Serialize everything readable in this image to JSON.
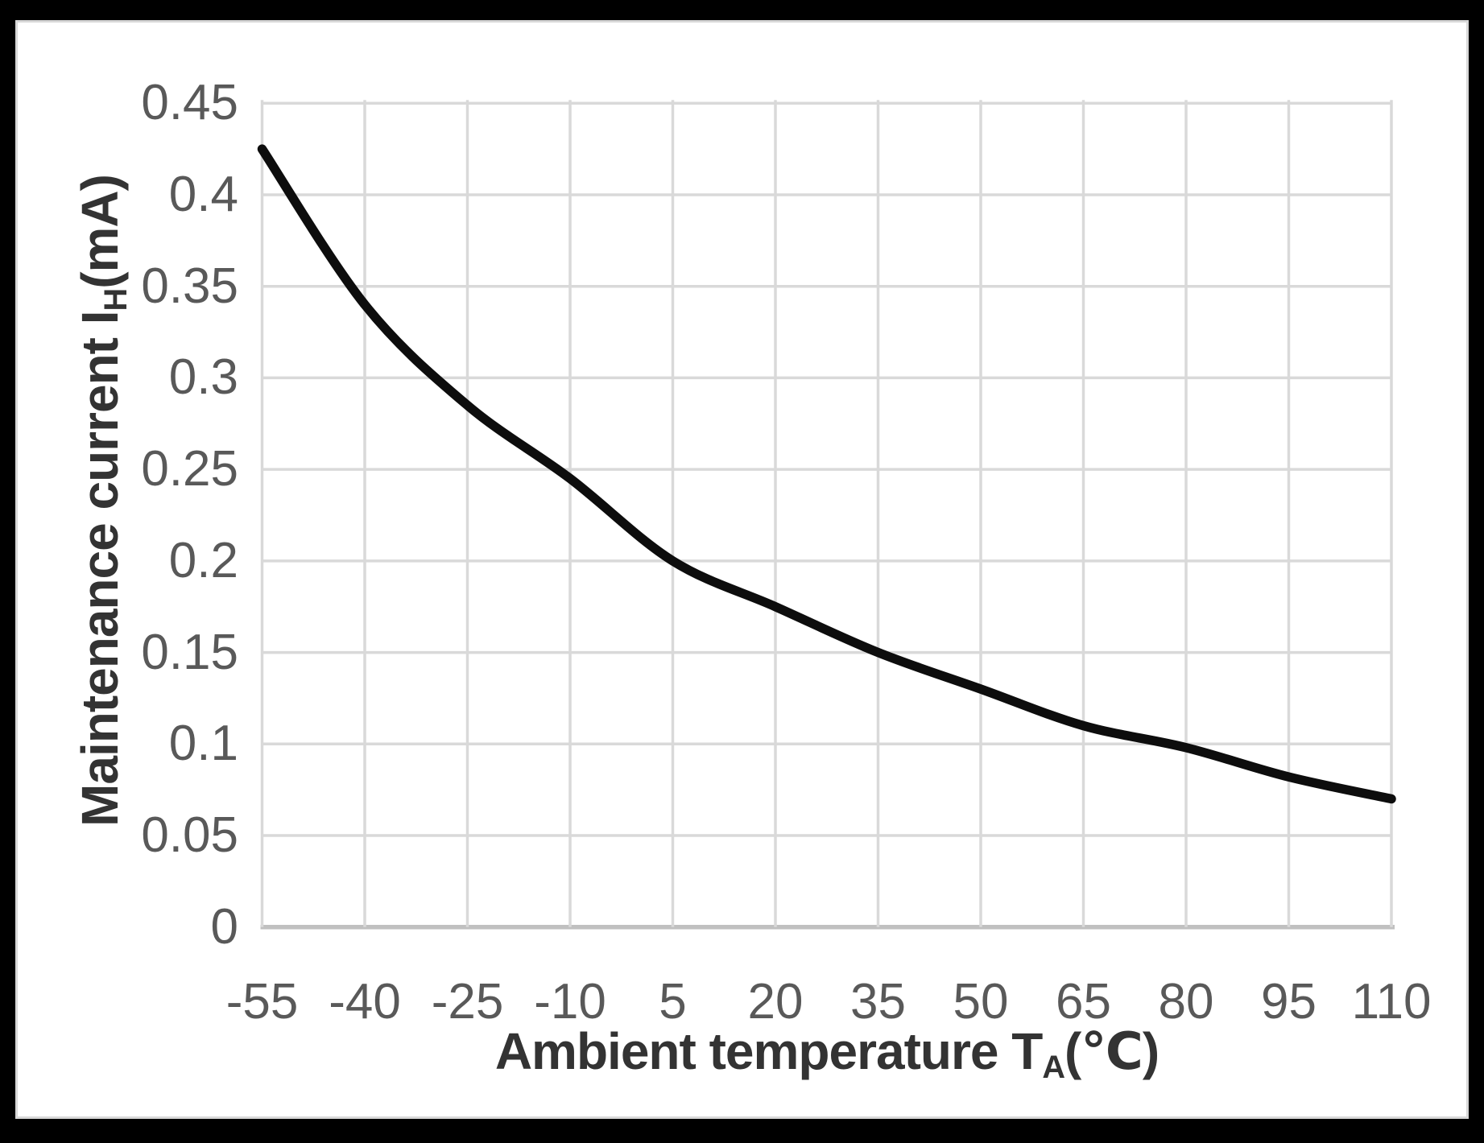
{
  "chart_data": {
    "type": "line",
    "title": "",
    "x": [
      -55,
      -40,
      -25,
      -10,
      5,
      20,
      35,
      50,
      65,
      80,
      95,
      110
    ],
    "series": [
      {
        "name": "maintenance-current",
        "values": [
          0.425,
          0.34,
          0.285,
          0.245,
          0.2,
          0.175,
          0.15,
          0.13,
          0.11,
          0.098,
          0.082,
          0.07
        ]
      }
    ],
    "xlabel": "Ambient temperature TA(℃)",
    "ylabel": "Maintenance current IH(mA)",
    "xlim": [
      -55,
      110
    ],
    "ylim": [
      0,
      0.45
    ],
    "x_ticks": [
      "-55",
      "-40",
      "-25",
      "-10",
      "5",
      "20",
      "35",
      "50",
      "65",
      "80",
      "95",
      "110"
    ],
    "y_ticks": [
      "0",
      "0.05",
      "0.1",
      "0.15",
      "0.2",
      "0.25",
      "0.3",
      "0.35",
      "0.4",
      "0.45"
    ],
    "grid": true,
    "legend": false,
    "line_smooth": true
  },
  "axes": {
    "y_title": {
      "prefix": "Maintenance current I",
      "sub": "H",
      "suffix": "(mA)"
    },
    "x_title": {
      "prefix": "Ambient temperature T",
      "sub": "A",
      "suffix": "(℃)"
    }
  },
  "colors": {
    "frame_bg": "#000000",
    "panel_bg": "#ffffff",
    "panel_border": "#d8d8d8",
    "grid": "#d9d9d9",
    "axis_line": "#c0c0c0",
    "tick_label": "#595959",
    "title_text": "#333333",
    "curve": "#0d0d0d"
  }
}
